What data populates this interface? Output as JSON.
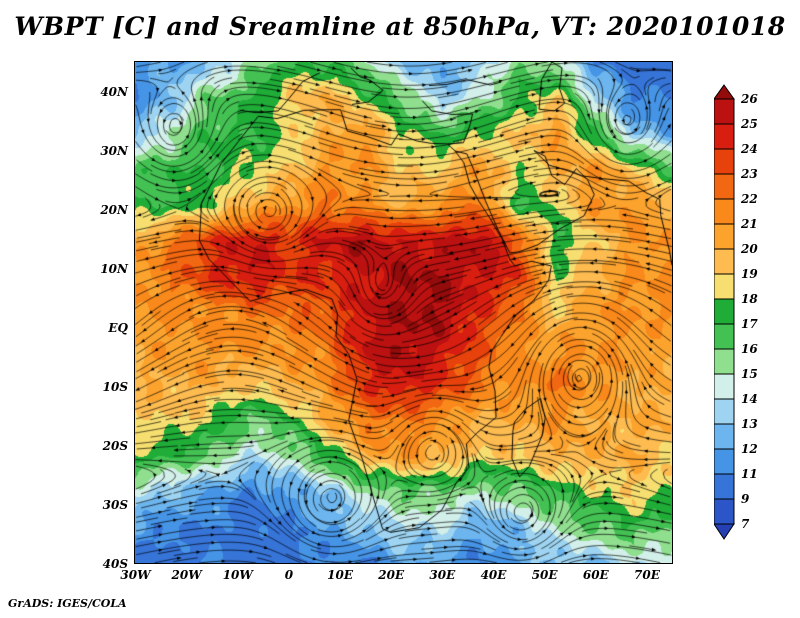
{
  "title": "WBPT [C] and Sreamline at 850hPa, VT: 2020101018",
  "footer": "GrADS: IGES/COLA",
  "chart_data": {
    "type": "heatmap",
    "title": "WBPT [C] and Sreamline at 850hPa, VT: 2020101018",
    "variable": "WBPT",
    "units": "C",
    "level": "850hPa",
    "valid_time": "2020101018",
    "overlay": "streamlines",
    "x_axis": {
      "range": [
        -30,
        75
      ],
      "ticks": [
        {
          "label": "30W",
          "lon": -30
        },
        {
          "label": "20W",
          "lon": -20
        },
        {
          "label": "10W",
          "lon": -10
        },
        {
          "label": "0",
          "lon": 0
        },
        {
          "label": "10E",
          "lon": 10
        },
        {
          "label": "20E",
          "lon": 20
        },
        {
          "label": "30E",
          "lon": 30
        },
        {
          "label": "40E",
          "lon": 40
        },
        {
          "label": "50E",
          "lon": 50
        },
        {
          "label": "60E",
          "lon": 60
        },
        {
          "label": "70E",
          "lon": 70
        }
      ]
    },
    "y_axis": {
      "range": [
        45,
        -40
      ],
      "ticks": [
        {
          "label": "40N",
          "lat": 40
        },
        {
          "label": "30N",
          "lat": 30
        },
        {
          "label": "20N",
          "lat": 20
        },
        {
          "label": "10N",
          "lat": 10
        },
        {
          "label": "EQ",
          "lat": 0
        },
        {
          "label": "10S",
          "lat": -10
        },
        {
          "label": "20S",
          "lat": -20
        },
        {
          "label": "30S",
          "lat": -30
        },
        {
          "label": "40S",
          "lat": -40
        }
      ]
    },
    "colorbar": {
      "labels": [
        "26",
        "25",
        "24",
        "23",
        "22",
        "21",
        "20",
        "19",
        "18",
        "17",
        "16",
        "15",
        "14",
        "13",
        "12",
        "11",
        "9",
        "7"
      ],
      "boundaries": [
        26,
        25,
        24,
        23,
        22,
        21,
        20,
        19,
        18,
        17,
        16,
        15,
        14,
        13,
        12,
        11,
        9,
        7
      ],
      "colors_top_to_bottom": [
        "#930b0b",
        "#bb1111",
        "#d81e10",
        "#e8420c",
        "#f26711",
        "#f9891b",
        "#fca32e",
        "#fdbb50",
        "#f6df70",
        "#1fad38",
        "#43c253",
        "#8fdf8f",
        "#d2efe9",
        "#9ed4f1",
        "#6cb5ee",
        "#4694e6",
        "#3674d8",
        "#2c56c8",
        "#2440b4"
      ]
    },
    "grid": {
      "lons": [
        -30,
        -22.5,
        -15,
        -7.5,
        0,
        7.5,
        15,
        22.5,
        30,
        37.5,
        45,
        52.5,
        60,
        67.5,
        75
      ],
      "lats": [
        45,
        38.93,
        32.86,
        26.79,
        20.71,
        14.64,
        8.57,
        2.5,
        -3.57,
        -9.64,
        -15.71,
        -21.79,
        -27.86,
        -33.93,
        -40
      ],
      "values": [
        [
          12,
          12,
          13,
          15,
          17,
          17,
          15,
          13,
          12,
          13,
          16,
          15,
          11,
          10,
          10
        ],
        [
          11,
          13,
          16,
          17,
          19,
          20,
          18,
          16,
          13,
          15,
          17,
          19,
          14,
          11,
          11
        ],
        [
          13,
          15,
          17,
          17,
          18,
          20,
          21,
          18,
          17,
          18,
          19,
          21,
          17,
          13,
          12
        ],
        [
          16,
          17,
          17,
          18,
          19,
          21,
          21,
          19,
          19,
          21,
          18,
          20,
          21,
          19,
          17
        ],
        [
          17,
          17,
          18,
          20,
          21,
          22,
          21,
          20,
          21,
          22,
          17,
          18,
          21,
          21,
          20
        ],
        [
          20,
          22,
          24,
          25,
          24,
          25,
          26,
          25,
          25,
          26,
          23,
          17,
          19,
          21,
          21
        ],
        [
          21,
          22,
          24,
          25,
          24,
          24,
          25,
          26,
          26,
          25,
          24,
          18,
          20,
          21,
          21
        ],
        [
          21,
          21,
          21,
          22,
          22,
          23,
          25,
          26,
          26,
          24,
          22,
          19,
          21,
          21,
          21
        ],
        [
          20,
          21,
          21,
          21,
          21,
          22,
          25,
          26,
          25,
          23,
          21,
          21,
          21,
          21,
          20
        ],
        [
          20,
          20,
          20,
          19,
          20,
          21,
          24,
          25,
          24,
          22,
          21,
          22,
          21,
          20,
          20
        ],
        [
          19,
          19,
          18,
          16,
          17,
          20,
          22,
          22,
          21,
          20,
          20,
          21,
          20,
          20,
          20
        ],
        [
          18,
          17,
          16,
          14,
          15,
          17,
          20,
          21,
          20,
          19,
          19,
          20,
          20,
          20,
          19
        ],
        [
          14,
          13,
          12,
          11,
          12,
          13,
          15,
          16,
          16,
          15,
          16,
          17,
          18,
          19,
          18
        ],
        [
          12,
          11,
          11,
          10,
          11,
          12,
          13,
          14,
          14,
          12,
          13,
          15,
          16,
          17,
          16
        ],
        [
          10,
          10,
          11,
          10,
          10,
          11,
          11,
          12,
          12,
          11,
          12,
          13,
          13,
          14,
          14
        ]
      ]
    },
    "streamlines_approx": {
      "jets": [
        {
          "lat": 43,
          "width": 8,
          "u": 2.0
        },
        {
          "lat": 30,
          "width": 6,
          "u": 0.8
        },
        {
          "lat": 12,
          "width": 9,
          "u": -1.8
        },
        {
          "lat": -5,
          "width": 8,
          "u": -1.0
        },
        {
          "lat": -18,
          "width": 8,
          "u": -1.2
        },
        {
          "lat": -38,
          "width": 9,
          "u": 2.4
        }
      ],
      "vortices": [
        {
          "lon": 57,
          "lat": -8,
          "strength": 2.2,
          "radius": 5
        },
        {
          "lon": -22,
          "lat": 33,
          "strength": 1.4,
          "radius": 5
        },
        {
          "lon": 8,
          "lat": -30,
          "strength": 1.5,
          "radius": 6
        },
        {
          "lon": 46,
          "lat": -33,
          "strength": 1.2,
          "radius": 5
        },
        {
          "lon": 66,
          "lat": 34,
          "strength": 1.3,
          "radius": 5
        },
        {
          "lon": -4,
          "lat": 19,
          "strength": -0.9,
          "radius": 5
        },
        {
          "lon": 28,
          "lat": -20,
          "strength": 0.8,
          "radius": 5
        },
        {
          "lon": 18,
          "lat": 6,
          "strength": -0.7,
          "radius": 4
        }
      ]
    },
    "coastlines": [
      [
        [
          -5.9,
          35.8
        ],
        [
          -9.8,
          31.5
        ],
        [
          -13.2,
          27.7
        ],
        [
          -17.0,
          21.0
        ],
        [
          -17.4,
          14.7
        ],
        [
          -15.5,
          11.5
        ],
        [
          -13.2,
          9.5
        ],
        [
          -7.5,
          4.4
        ],
        [
          -4.0,
          5.3
        ],
        [
          1.2,
          6.1
        ],
        [
          3.4,
          6.4
        ],
        [
          8.5,
          4.8
        ],
        [
          9.6,
          2.3
        ],
        [
          9.3,
          -1.5
        ],
        [
          11.8,
          -4.6
        ],
        [
          13.4,
          -8.8
        ],
        [
          11.8,
          -15.8
        ],
        [
          14.5,
          -22.5
        ],
        [
          16.5,
          -28.6
        ],
        [
          18.4,
          -34.2
        ],
        [
          20.0,
          -34.8
        ],
        [
          25.6,
          -34.0
        ],
        [
          30.0,
          -31.0
        ],
        [
          32.9,
          -26.3
        ],
        [
          35.3,
          -23.8
        ],
        [
          34.8,
          -19.8
        ],
        [
          36.9,
          -17.9
        ],
        [
          40.6,
          -15.3
        ],
        [
          40.4,
          -10.8
        ],
        [
          39.2,
          -6.8
        ],
        [
          39.7,
          -4.1
        ],
        [
          41.5,
          -1.7
        ],
        [
          44.3,
          1.9
        ],
        [
          47.9,
          4.5
        ],
        [
          50.9,
          8.0
        ],
        [
          51.4,
          10.4
        ],
        [
          47.5,
          11.2
        ],
        [
          44.3,
          10.4
        ],
        [
          43.3,
          11.5
        ],
        [
          41.8,
          14.9
        ],
        [
          39.4,
          18.5
        ],
        [
          37.3,
          21.3
        ],
        [
          35.5,
          24.1
        ],
        [
          34.3,
          27.9
        ],
        [
          32.6,
          29.9
        ],
        [
          31.1,
          31.1
        ],
        [
          27.9,
          31.2
        ],
        [
          25.1,
          31.6
        ],
        [
          21.5,
          32.8
        ],
        [
          20.1,
          30.9
        ],
        [
          15.3,
          32.4
        ],
        [
          11.5,
          33.3
        ],
        [
          10.2,
          36.9
        ],
        [
          8.0,
          36.9
        ],
        [
          3.0,
          36.8
        ],
        [
          -2.2,
          35.4
        ],
        [
          -5.9,
          35.8
        ]
      ],
      [
        [
          44.2,
          -16.1
        ],
        [
          46.3,
          -13.9
        ],
        [
          49.3,
          -12.1
        ],
        [
          50.2,
          -15.4
        ],
        [
          49.6,
          -18.4
        ],
        [
          47.1,
          -23.6
        ],
        [
          45.2,
          -25.4
        ],
        [
          43.7,
          -22.3
        ],
        [
          43.9,
          -17.5
        ],
        [
          44.2,
          -16.1
        ]
      ],
      [
        [
          32.6,
          29.9
        ],
        [
          34.9,
          29.4
        ],
        [
          36.1,
          27.0
        ],
        [
          38.5,
          21.5
        ],
        [
          41.0,
          16.5
        ],
        [
          43.3,
          12.6
        ],
        [
          45.1,
          12.8
        ],
        [
          48.8,
          14.0
        ],
        [
          53.1,
          16.7
        ],
        [
          57.8,
          18.9
        ],
        [
          59.8,
          22.5
        ],
        [
          58.5,
          25.0
        ],
        [
          56.3,
          26.9
        ],
        [
          54.0,
          24.2
        ],
        [
          51.5,
          25.7
        ],
        [
          50.2,
          29.0
        ],
        [
          48.0,
          30.0
        ]
      ],
      [
        [
          48.0,
          30.0
        ],
        [
          51.0,
          27.5
        ],
        [
          54.5,
          26.6
        ],
        [
          57.3,
          25.7
        ],
        [
          61.5,
          25.2
        ],
        [
          66.5,
          24.8
        ],
        [
          70.0,
          22.8
        ],
        [
          72.6,
          21.7
        ],
        [
          72.8,
          19.0
        ],
        [
          74.5,
          13.0
        ],
        [
          75.0,
          10.5
        ]
      ],
      [
        [
          -9.5,
          36.8
        ],
        [
          -6.3,
          36.4
        ],
        [
          -2.0,
          36.7
        ],
        [
          0.1,
          38.8
        ],
        [
          2.8,
          41.7
        ],
        [
          6.2,
          43.2
        ]
      ],
      [
        [
          12.4,
          37.8
        ],
        [
          15.6,
          38.2
        ],
        [
          18.5,
          40.2
        ],
        [
          16.0,
          41.9
        ],
        [
          14.0,
          42.5
        ],
        [
          12.2,
          44.0
        ]
      ],
      [
        [
          26.2,
          38.4
        ],
        [
          28.0,
          36.7
        ],
        [
          32.0,
          36.1
        ],
        [
          36.0,
          36.2
        ],
        [
          35.6,
          34.6
        ],
        [
          34.9,
          32.8
        ],
        [
          34.2,
          31.3
        ],
        [
          31.1,
          31.1
        ]
      ],
      [
        [
          27.5,
          41.0
        ],
        [
          31.0,
          41.2
        ],
        [
          35.0,
          42.0
        ],
        [
          39.5,
          41.1
        ],
        [
          41.6,
          41.6
        ]
      ],
      [
        [
          49.0,
          37.0
        ],
        [
          49.5,
          42.0
        ],
        [
          51.5,
          45.0
        ],
        [
          53.5,
          44.0
        ],
        [
          53.0,
          40.5
        ],
        [
          54.0,
          38.0
        ],
        [
          52.0,
          36.7
        ],
        [
          49.0,
          37.0
        ]
      ]
    ]
  }
}
